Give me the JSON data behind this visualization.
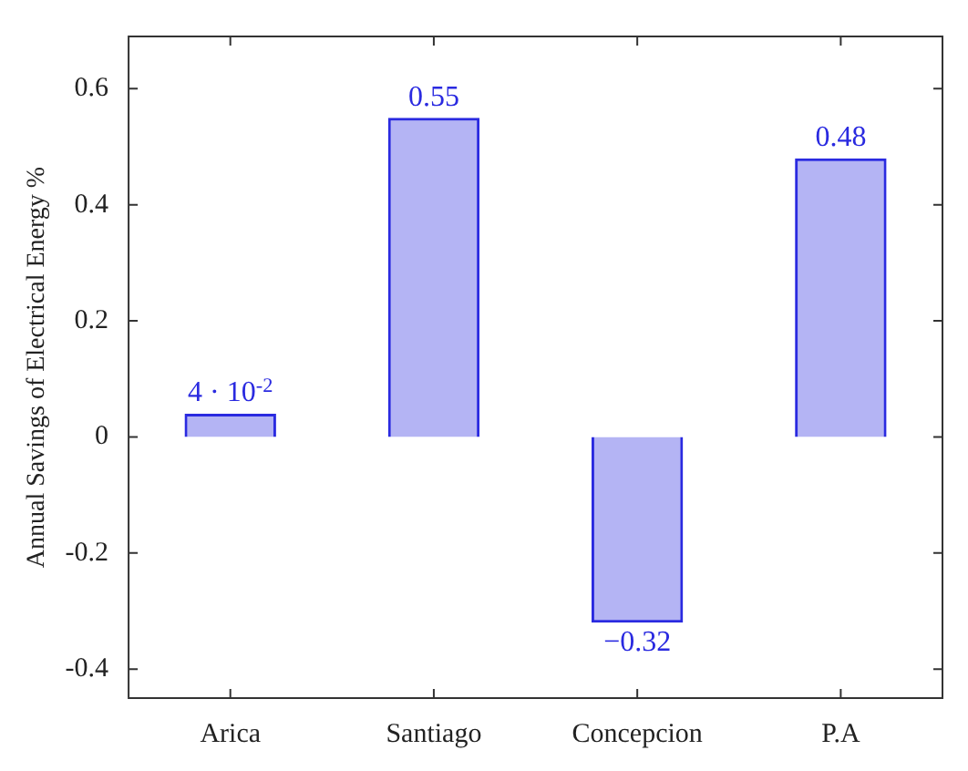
{
  "chart_data": {
    "type": "bar",
    "ylabel": "Annual Savings of Electrical Energy %",
    "categories": [
      "Arica",
      "Santiago",
      "Concepcion",
      "P.A"
    ],
    "values": [
      0.04,
      0.55,
      -0.32,
      0.48
    ],
    "value_labels": [
      "4 · 10$^{-2}$",
      "0.55",
      "−0.32",
      "0.48"
    ],
    "color": "#2a2ae0",
    "ylim": [
      -0.45,
      0.69
    ],
    "yticks": [
      -0.4,
      -0.2,
      0,
      0.2,
      0.4,
      0.6
    ]
  }
}
